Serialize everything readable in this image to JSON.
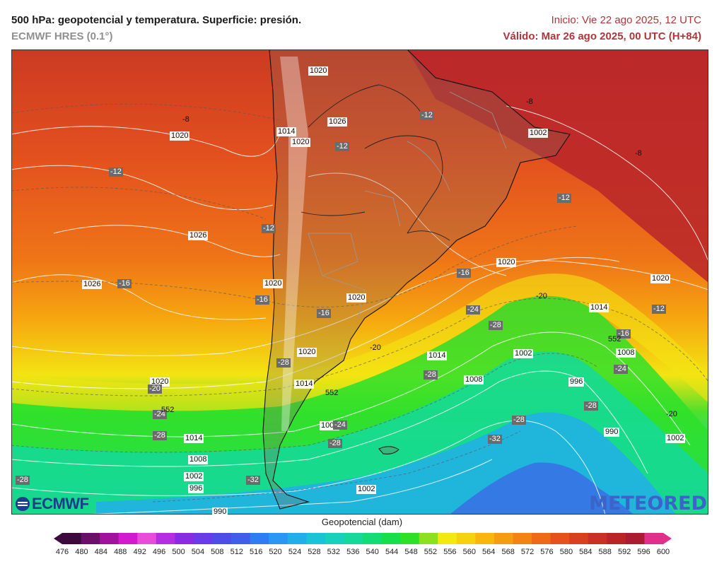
{
  "header": {
    "title": "500 hPa: geopotencial y temperatura. Superficie: presión.",
    "model": "ECMWF HRES (0.1°)",
    "run": "Inicio: Vie 22 ago 2025, 12 UTC",
    "valid": "Válido: Mar 26 ago 2025, 00 UTC (H+84)"
  },
  "legend": {
    "title": "Geopotencial (dam)",
    "values": [
      "476",
      "480",
      "484",
      "488",
      "492",
      "496",
      "500",
      "504",
      "508",
      "512",
      "516",
      "520",
      "524",
      "528",
      "532",
      "536",
      "540",
      "544",
      "548",
      "552",
      "556",
      "560",
      "564",
      "568",
      "572",
      "576",
      "580",
      "584",
      "588",
      "592",
      "596",
      "600"
    ],
    "colors": [
      "#3c0a3c",
      "#6b0f6b",
      "#a0149b",
      "#d21bcc",
      "#e64dd8",
      "#b32fe0",
      "#8a2be2",
      "#6a3be8",
      "#4e4ee6",
      "#3f5fe8",
      "#2f7df0",
      "#2b97f2",
      "#22aee9",
      "#19c3d8",
      "#17d1bc",
      "#14d99b",
      "#12dd74",
      "#15df4b",
      "#2ee02a",
      "#8ae11c",
      "#f1e90f",
      "#f6d10d",
      "#f7b70d",
      "#f59d10",
      "#f28414",
      "#ed6a18",
      "#e5521c",
      "#d8401f",
      "#c83123",
      "#b72527",
      "#a81e30",
      "#e0308a"
    ]
  },
  "pressure_labels": [
    "1020",
    "1014",
    "1026",
    "1020",
    "1020",
    "1026",
    "1026",
    "1020",
    "1020",
    "1020",
    "1014",
    "1020",
    "1014",
    "1008",
    "1002",
    "996",
    "990",
    "1008",
    "1002",
    "1020",
    "1014",
    "1008",
    "1002",
    "996",
    "990",
    "1002",
    "1020",
    "1008",
    "1002",
    "1014",
    "1020",
    "1002"
  ],
  "temperature_labels": [
    "-8",
    "-8",
    "-12",
    "-12",
    "-12",
    "-12",
    "-12",
    "-8",
    "-16",
    "-16",
    "-16",
    "-16",
    "-12",
    "-16",
    "-20",
    "-20",
    "-20",
    "-24",
    "-24",
    "-28",
    "-24",
    "-28",
    "-28",
    "-28",
    "-28",
    "-28",
    "-32",
    "-28",
    "-32",
    "-28",
    "-24",
    "-20"
  ],
  "geopotential_labels": [
    "552",
    "552",
    "552"
  ],
  "logos": {
    "left": "ECMWF",
    "right": "METEORED"
  }
}
